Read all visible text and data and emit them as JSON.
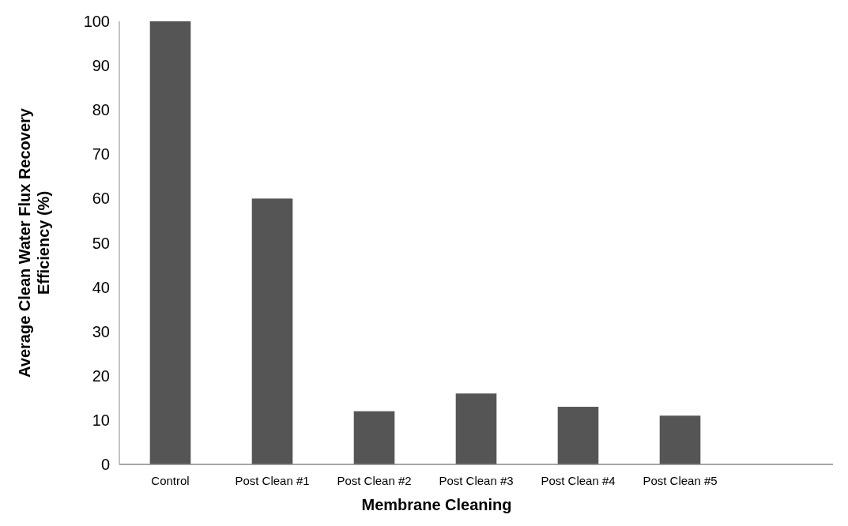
{
  "chart_data": {
    "type": "bar",
    "xlabel": "Membrane Cleaning",
    "ylabel": "Average Clean Water Flux Recovery Efficiency (%)",
    "categories": [
      "Control",
      "Post Clean #1",
      "Post Clean #2",
      "Post Clean #3",
      "Post Clean #4",
      "Post Clean #5",
      null
    ],
    "values": [
      100,
      60,
      12,
      16,
      13,
      11,
      null
    ],
    "color": "#555555",
    "ylim": [
      0,
      100
    ],
    "yticks": [
      0,
      10,
      20,
      30,
      40,
      50,
      60,
      70,
      80,
      90,
      100
    ],
    "grid": false
  }
}
